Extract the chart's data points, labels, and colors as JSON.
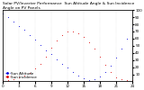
{
  "title": "Solar PV/Inverter Performance  Sun Altitude Angle & Sun Incidence Angle on PV Panels",
  "background_color": "#ffffff",
  "grid_color": "#bbbbbb",
  "blue_color": "#0000dd",
  "red_color": "#dd0000",
  "x_values": [
    0,
    1,
    2,
    3,
    4,
    5,
    6,
    7,
    8,
    9,
    10,
    11,
    12,
    13,
    14,
    15,
    16,
    17,
    18,
    19,
    20,
    21,
    22,
    23,
    24
  ],
  "blue_values": [
    95,
    90,
    84,
    78,
    72,
    65,
    58,
    51,
    44,
    38,
    31,
    25,
    19,
    13,
    8,
    4,
    2,
    3,
    7,
    13,
    22,
    33,
    46,
    60,
    75
  ],
  "red_values": [
    2,
    2,
    3,
    5,
    8,
    12,
    18,
    25,
    35,
    47,
    57,
    65,
    70,
    70,
    67,
    62,
    55,
    46,
    35,
    23,
    13,
    6,
    3,
    2,
    2
  ],
  "ylim": [
    0,
    100
  ],
  "xlim": [
    0,
    24
  ],
  "yticks_right": [
    10,
    20,
    30,
    40,
    50,
    60,
    70,
    80,
    90,
    100
  ],
  "xtick_values": [
    0,
    3,
    6,
    9,
    12,
    15,
    18,
    21,
    24
  ],
  "title_fontsize": 3.2,
  "tick_fontsize": 3.0,
  "marker_size": 1.2,
  "legend_fontsize": 3.0
}
